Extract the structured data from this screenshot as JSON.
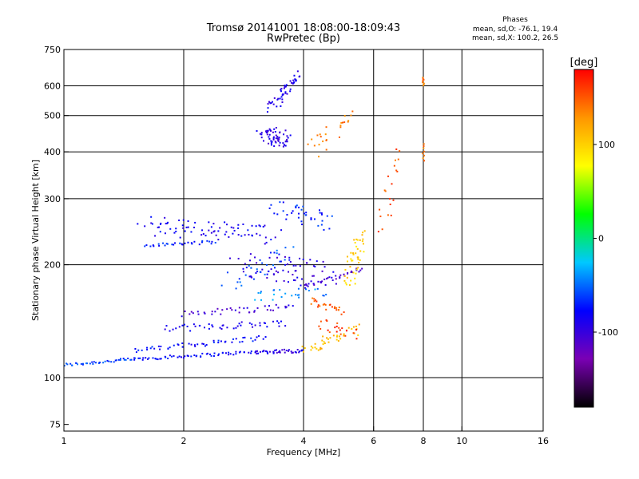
{
  "chart_data": {
    "type": "scatter",
    "title": "Tromsø 20141001 18:08:00-18:09:43",
    "subtitle": "RwPretec (Bp)",
    "xlabel": "Frequency [MHz]",
    "ylabel": "Stationary phase Virtual Height [km]",
    "x_scale": "log",
    "y_scale": "log",
    "xlim": [
      1,
      16
    ],
    "ylim": [
      72,
      750
    ],
    "x_ticks": [
      1,
      2,
      4,
      6,
      8,
      10,
      16
    ],
    "x_tick_labels": [
      "1",
      "2",
      "4",
      "6",
      "8",
      "10",
      "16"
    ],
    "y_ticks": [
      75,
      100,
      200,
      300,
      400,
      500,
      600,
      750
    ],
    "y_tick_labels": [
      "75",
      "100",
      "200",
      "300",
      "400",
      "500",
      "600",
      "750"
    ],
    "grid": true,
    "legend": {
      "title": "Phases",
      "lines": [
        "mean, sd,O: -76.1, 19.4",
        "mean, sd,X: 100.2, 26.5"
      ],
      "placement": "top-right"
    },
    "colorbar": {
      "label": "[deg]",
      "range": [
        -180,
        180
      ],
      "ticks": [
        100,
        0,
        -100
      ],
      "tick_labels": [
        "100",
        "0",
        "-100"
      ],
      "colormap": [
        "#000000",
        "#7a00b4",
        "#0000ff",
        "#00c8ff",
        "#00ff00",
        "#ffff00",
        "#ff9600",
        "#ff0000"
      ]
    },
    "series": [
      {
        "traces": [
          {
            "from": [
              1.0,
              108
            ],
            "to": [
              1.5,
              112
            ],
            "n": 40,
            "phase": -60,
            "jitter": 0.01
          },
          {
            "from": [
              1.5,
              112
            ],
            "to": [
              3.0,
              117
            ],
            "n": 60,
            "phase": -80,
            "jitter": 0.01
          },
          {
            "from": [
              3.0,
              117
            ],
            "to": [
              4.0,
              118
            ],
            "n": 40,
            "phase": -95,
            "jitter": 0.012
          },
          {
            "from": [
              1.5,
              118
            ],
            "to": [
              3.2,
              128
            ],
            "n": 50,
            "phase": -75,
            "jitter": 0.015
          },
          {
            "from": [
              1.8,
              135
            ],
            "to": [
              3.6,
              140
            ],
            "n": 45,
            "phase": -90,
            "jitter": 0.02
          },
          {
            "from": [
              2.0,
              148
            ],
            "to": [
              3.8,
              155
            ],
            "n": 40,
            "phase": -100,
            "jitter": 0.02
          },
          {
            "from": [
              1.6,
              225
            ],
            "to": [
              2.4,
              230
            ],
            "n": 30,
            "phase": -70,
            "jitter": 0.01
          },
          {
            "from": [
              1.6,
              255
            ],
            "to": [
              3.4,
              240
            ],
            "n": 80,
            "phase": -85,
            "jitter": 0.06
          },
          {
            "from": [
              3.2,
              450
            ],
            "to": [
              3.6,
              430
            ],
            "n": 60,
            "phase": -95,
            "jitter": 0.05
          },
          {
            "from": [
              3.3,
              520
            ],
            "to": [
              3.9,
              640
            ],
            "n": 50,
            "phase": -90,
            "jitter": 0.03
          },
          {
            "from": [
              2.8,
              200
            ],
            "to": [
              4.5,
              190
            ],
            "n": 70,
            "phase": -95,
            "jitter": 0.08
          },
          {
            "from": [
              4.0,
              118
            ],
            "to": [
              5.5,
              135
            ],
            "n": 40,
            "phase": 110,
            "jitter": 0.03
          },
          {
            "from": [
              4.0,
              175
            ],
            "to": [
              5.6,
              195
            ],
            "n": 35,
            "phase": -105,
            "jitter": 0.015
          },
          {
            "from": [
              4.2,
              160
            ],
            "to": [
              5.0,
              150
            ],
            "n": 25,
            "phase": 150,
            "jitter": 0.02
          },
          {
            "from": [
              5.2,
              180
            ],
            "to": [
              5.6,
              240
            ],
            "n": 45,
            "phase": 100,
            "jitter": 0.04
          },
          {
            "from": [
              4.4,
              140
            ],
            "to": [
              5.4,
              130
            ],
            "n": 20,
            "phase": 160,
            "jitter": 0.03
          },
          {
            "from": [
              3.0,
              165
            ],
            "to": [
              4.5,
              170
            ],
            "n": 25,
            "phase": -40,
            "jitter": 0.03
          },
          {
            "from": [
              2.6,
              180
            ],
            "to": [
              3.8,
              215
            ],
            "n": 30,
            "phase": -60,
            "jitter": 0.05
          },
          {
            "from": [
              8.0,
              600
            ],
            "to": [
              8.0,
              630
            ],
            "n": 8,
            "phase": 140,
            "jitter": 0.005
          },
          {
            "from": [
              8.0,
              380
            ],
            "to": [
              8.0,
              420
            ],
            "n": 8,
            "phase": 140,
            "jitter": 0.005
          },
          {
            "from": [
              6.3,
              250
            ],
            "to": [
              6.8,
              400
            ],
            "n": 20,
            "phase": 150,
            "jitter": 0.04
          },
          {
            "from": [
              4.2,
              400
            ],
            "to": [
              5.2,
              500
            ],
            "n": 25,
            "phase": 140,
            "jitter": 0.05
          },
          {
            "from": [
              3.4,
              280
            ],
            "to": [
              4.6,
              260
            ],
            "n": 40,
            "phase": -70,
            "jitter": 0.06
          }
        ]
      }
    ]
  }
}
